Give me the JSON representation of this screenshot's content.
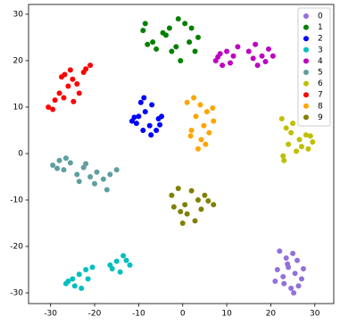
{
  "chart_data": {
    "type": "scatter",
    "xlim": [
      -35,
      34.3
    ],
    "ylim": [
      -32.3,
      32.1
    ],
    "xticks": [
      -30,
      -20,
      -10,
      0,
      10,
      20,
      30
    ],
    "yticks": [
      -30,
      -20,
      -10,
      0,
      10,
      20,
      30
    ],
    "legend": "upper right",
    "series": [
      {
        "name": "0",
        "color": "#9370db",
        "x": [
          22,
          23.5,
          25,
          26,
          24,
          21.5,
          22.8,
          25.5,
          27,
          23,
          24.6,
          26.3,
          21,
          23.8,
          25.2,
          27.4
        ],
        "y": [
          -21,
          -22.5,
          -21.5,
          -23,
          -24.5,
          -25,
          -26.5,
          -25.8,
          -27,
          -28,
          -29,
          -28.5,
          -27.5,
          -23.8,
          -30,
          -24.8
        ]
      },
      {
        "name": "1",
        "color": "#008000",
        "x": [
          -8.5,
          -9,
          -6.8,
          -4.5,
          -3,
          -1.5,
          0.5,
          2,
          3.5,
          -2.5,
          -0.5,
          1.5,
          -6,
          -8,
          -3.8,
          2.8,
          -1
        ],
        "y": [
          28,
          26.5,
          24,
          26,
          27,
          23,
          28,
          27,
          25,
          22,
          20,
          24,
          22.5,
          23.5,
          25.5,
          22,
          29
        ]
      },
      {
        "name": "2",
        "color": "#0000ff",
        "x": [
          -11.5,
          -10,
          -8.5,
          -7,
          -5.5,
          -9,
          -7.5,
          -10.5,
          -6,
          -8.8,
          -4.8,
          -11,
          -9.5,
          -7.2,
          -5.2
        ],
        "y": [
          7,
          8,
          9,
          10.5,
          7.5,
          5,
          6,
          6.5,
          5,
          12,
          8,
          7.8,
          11,
          4,
          6.2
        ]
      },
      {
        "name": "3",
        "color": "#00bfbf",
        "x": [
          -26.5,
          -25,
          -23.5,
          -22,
          -20.5,
          -24.5,
          -26,
          -23,
          -21.5,
          -16.5,
          -15,
          -13.5,
          -12,
          -14.2,
          -16,
          -12.8
        ],
        "y": [
          -28,
          -27,
          -26,
          -25,
          -24.5,
          -28.5,
          -27.5,
          -29,
          -27,
          -24,
          -23.2,
          -22,
          -24,
          -25.5,
          -24.8,
          -23
        ]
      },
      {
        "name": "4",
        "color": "#bf00bf",
        "x": [
          7.5,
          8.5,
          10,
          11.5,
          12.5,
          9,
          10.8,
          8,
          15,
          16.5,
          18,
          19.5,
          20.5,
          17,
          18.8,
          16
        ],
        "y": [
          20,
          21.5,
          22,
          21,
          23,
          19,
          19.5,
          20.8,
          22,
          23.5,
          21,
          22.5,
          21,
          19,
          19.8,
          20.5
        ]
      },
      {
        "name": "5",
        "color": "#5f9ea0",
        "x": [
          -29.5,
          -28,
          -27,
          -25.5,
          -24,
          -22.5,
          -21,
          -19.5,
          -18,
          -16.5,
          -15,
          -26.5,
          -23.5,
          -20,
          -17.2,
          -28.5,
          -22
        ],
        "y": [
          -2.5,
          -1.5,
          -3.5,
          -2,
          -4.5,
          -3,
          -5,
          -4,
          -5.5,
          -4.5,
          -3.5,
          -1,
          -6,
          -6.5,
          -7.8,
          -3.2,
          -2.2
        ]
      },
      {
        "name": "6",
        "color": "#bfbf00",
        "x": [
          22.5,
          23.5,
          25,
          26.5,
          28,
          29.5,
          24,
          22.8,
          27,
          29,
          25.8,
          23,
          28.5,
          24.6
        ],
        "y": [
          7.5,
          5.5,
          6.5,
          3,
          4,
          2.5,
          2,
          -0.5,
          1.5,
          3.8,
          0.5,
          -1.5,
          1,
          4.5
        ]
      },
      {
        "name": "7",
        "color": "#ff0000",
        "x": [
          -30.5,
          -29,
          -28,
          -27,
          -26,
          -25,
          -24,
          -22.5,
          -21,
          -27.5,
          -25.5,
          -23.5,
          -29.5,
          -26.8,
          -24.8,
          -22
        ],
        "y": [
          10,
          11.5,
          13,
          12,
          14.5,
          16,
          15,
          17.5,
          19,
          16.5,
          18,
          13,
          9.5,
          17,
          11.2,
          18.2
        ]
      },
      {
        "name": "8",
        "color": "#ffa500",
        "x": [
          1,
          2.5,
          4,
          5.5,
          7,
          3,
          4.8,
          2,
          6,
          4.2,
          3.5,
          1.8,
          5.2,
          6.8
        ],
        "y": [
          11,
          12,
          10.5,
          9,
          7,
          8,
          6,
          5,
          4.5,
          3,
          1,
          3.8,
          2,
          9.8
        ]
      },
      {
        "name": "9",
        "color": "#808000",
        "x": [
          -2.5,
          -1,
          0.5,
          2,
          3.5,
          5,
          7,
          1,
          -0.5,
          2.8,
          4.2,
          0,
          -2,
          5.8
        ],
        "y": [
          -9,
          -7.5,
          -11,
          -8,
          -10,
          -9,
          -11,
          -13,
          -12.5,
          -14.5,
          -12,
          -15,
          -11.5,
          -10.2
        ]
      }
    ]
  }
}
